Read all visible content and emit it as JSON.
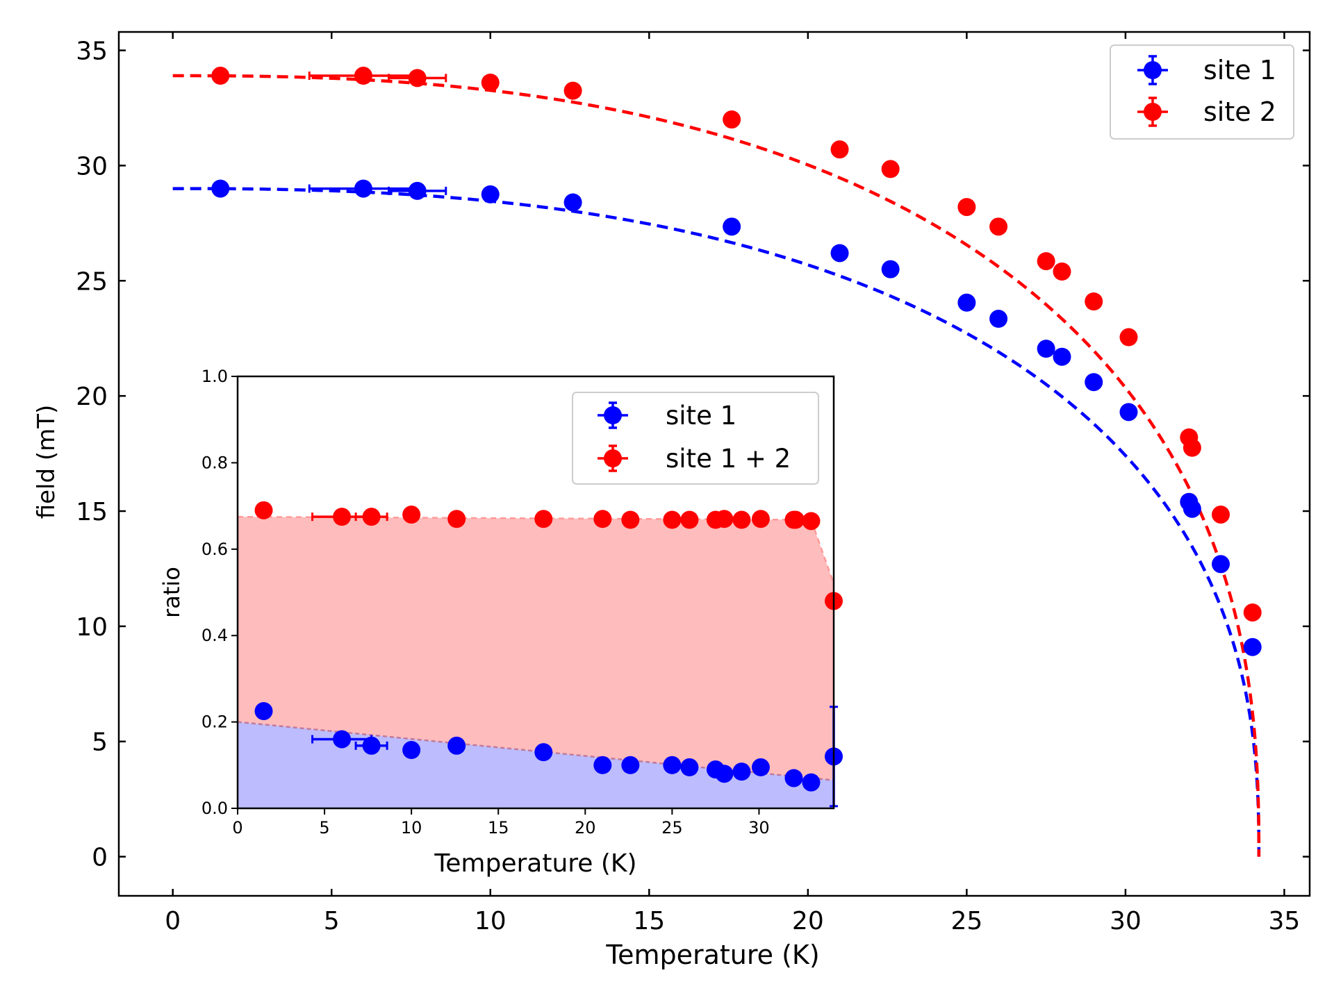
{
  "chart_data": [
    {
      "type": "scatter",
      "xlabel": "Temperature (K)",
      "ylabel": "field (mT)",
      "xlim": [
        -1.7,
        35.8
      ],
      "ylim": [
        -1.7,
        35.8
      ],
      "xticks": [
        0,
        5,
        10,
        15,
        20,
        25,
        30,
        35
      ],
      "yticks": [
        0,
        5,
        10,
        15,
        20,
        25,
        30,
        35
      ],
      "grid": false,
      "legend_position": "top-right",
      "series": [
        {
          "name": "site 1",
          "color": "#0000ff",
          "x": [
            1.5,
            6.0,
            7.7,
            10.0,
            12.6,
            17.6,
            21.0,
            22.6,
            25.0,
            26.0,
            27.5,
            28.0,
            29.0,
            30.1,
            32.0,
            32.1,
            33.0,
            34.0
          ],
          "y": [
            29.0,
            29.0,
            28.9,
            28.75,
            28.4,
            27.35,
            26.2,
            25.5,
            24.05,
            23.35,
            22.05,
            21.7,
            20.6,
            19.3,
            15.4,
            15.1,
            12.7,
            9.1
          ],
          "xerr": [
            0,
            1.7,
            0.9,
            0,
            0,
            0,
            0,
            0,
            0,
            0,
            0,
            0,
            0,
            0,
            0,
            0,
            0,
            0
          ],
          "fit": {
            "style": "dashed",
            "y0": 29.0,
            "tc": 34.2
          }
        },
        {
          "name": "site 2",
          "color": "#ff0000",
          "x": [
            1.5,
            6.0,
            7.7,
            10.0,
            12.6,
            17.6,
            21.0,
            22.6,
            25.0,
            26.0,
            27.5,
            28.0,
            29.0,
            30.1,
            32.0,
            32.1,
            33.0,
            34.0
          ],
          "y": [
            33.9,
            33.9,
            33.8,
            33.6,
            33.25,
            32.0,
            30.7,
            29.85,
            28.2,
            27.35,
            25.85,
            25.4,
            24.1,
            22.55,
            18.2,
            17.75,
            14.85,
            10.6
          ],
          "xerr": [
            0,
            1.7,
            0.9,
            0,
            0,
            0,
            0,
            0,
            0,
            0,
            0,
            0,
            0,
            0,
            0,
            0,
            0,
            0
          ],
          "fit": {
            "style": "dashed",
            "y0": 33.9,
            "tc": 34.2
          }
        }
      ]
    },
    {
      "type": "scatter",
      "xlabel": "Temperature (K)",
      "ylabel": "ratio",
      "xlim": [
        0,
        34.3
      ],
      "ylim": [
        0,
        1.0
      ],
      "xticks": [
        0,
        5,
        10,
        15,
        20,
        25,
        30
      ],
      "yticks": [
        0.0,
        0.2,
        0.4,
        0.6,
        0.8,
        1.0
      ],
      "grid": false,
      "legend_position": "top-center",
      "series": [
        {
          "name": "site 1",
          "color": "#0000ff",
          "fill_color": "#bcbcff",
          "x": [
            1.5,
            6.0,
            7.7,
            10.0,
            12.6,
            17.6,
            21.0,
            22.6,
            25.0,
            26.0,
            27.5,
            28.0,
            29.0,
            30.1,
            32.0,
            33.0,
            34.3
          ],
          "y": [
            0.225,
            0.16,
            0.145,
            0.135,
            0.145,
            0.13,
            0.1,
            0.1,
            0.1,
            0.095,
            0.09,
            0.08,
            0.085,
            0.095,
            0.07,
            0.06,
            0.12
          ],
          "xerr": [
            0,
            1.7,
            0.9,
            0,
            0,
            0,
            0,
            0,
            0,
            0,
            0,
            0,
            0,
            0,
            0,
            0,
            0
          ],
          "yerr": [
            0,
            0,
            0,
            0,
            0,
            0,
            0,
            0,
            0,
            0,
            0,
            0,
            0,
            0,
            0,
            0,
            0.115
          ],
          "fit_line": {
            "x": [
              0,
              34.3
            ],
            "y": [
              0.2,
              0.065
            ]
          }
        },
        {
          "name": "site 1 + 2",
          "color": "#ff0000",
          "fill_color": "#ffbcbc",
          "x": [
            1.5,
            6.0,
            7.7,
            10.0,
            12.6,
            17.6,
            21.0,
            22.6,
            25.0,
            26.0,
            27.5,
            28.0,
            29.0,
            30.1,
            32.0,
            32.1,
            33.0,
            34.3
          ],
          "y": [
            0.69,
            0.675,
            0.675,
            0.68,
            0.67,
            0.67,
            0.67,
            0.668,
            0.668,
            0.668,
            0.668,
            0.67,
            0.668,
            0.67,
            0.668,
            0.668,
            0.665,
            0.48
          ],
          "xerr": [
            0,
            1.7,
            0.9,
            0,
            0,
            0,
            0,
            0,
            0,
            0,
            0,
            0,
            0,
            0,
            0,
            0,
            0,
            0
          ],
          "fit_line": {
            "x": [
              0,
              33.0,
              34.3
            ],
            "y": [
              0.675,
              0.668,
              0.52
            ]
          }
        }
      ]
    }
  ]
}
